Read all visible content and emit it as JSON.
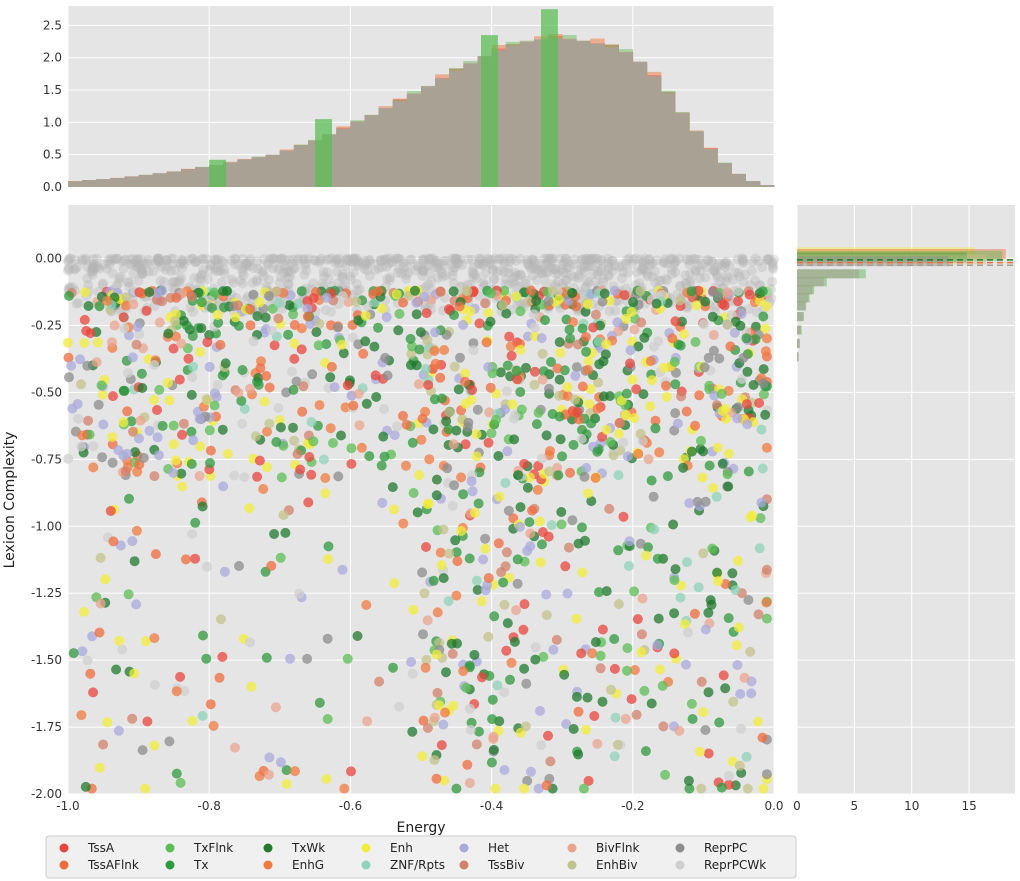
{
  "chart_data": [
    {
      "id": "top_hist",
      "type": "histogram",
      "ylim": [
        0,
        2.8
      ],
      "xlim": [
        -1.0,
        0.0
      ],
      "yticks": [
        "0.0",
        "0.5",
        "1.0",
        "1.5",
        "2.0",
        "2.5"
      ],
      "density_profile": [
        [
          -1.0,
          0.08
        ],
        [
          -0.95,
          0.12
        ],
        [
          -0.9,
          0.17
        ],
        [
          -0.85,
          0.24
        ],
        [
          -0.8,
          0.32
        ],
        [
          -0.75,
          0.42
        ],
        [
          -0.7,
          0.52
        ],
        [
          -0.65,
          0.72
        ],
        [
          -0.6,
          0.95
        ],
        [
          -0.55,
          1.22
        ],
        [
          -0.5,
          1.5
        ],
        [
          -0.45,
          1.8
        ],
        [
          -0.4,
          2.08
        ],
        [
          -0.35,
          2.25
        ],
        [
          -0.32,
          2.3
        ],
        [
          -0.28,
          2.28
        ],
        [
          -0.24,
          2.2
        ],
        [
          -0.2,
          2.05
        ],
        [
          -0.16,
          1.6
        ],
        [
          -0.12,
          1.0
        ],
        [
          -0.08,
          0.45
        ],
        [
          -0.04,
          0.12
        ],
        [
          0.0,
          0.0
        ]
      ],
      "green_spikes": [
        [
          -0.64,
          1.05
        ],
        [
          -0.405,
          2.35
        ],
        [
          -0.32,
          2.75
        ],
        [
          -0.79,
          0.42
        ]
      ]
    },
    {
      "id": "scatter",
      "type": "scatter",
      "xlabel": "Energy",
      "ylabel": "Lexicon Complexity",
      "xlim": [
        -1.0,
        0.0
      ],
      "ylim": [
        -2.0,
        0.2
      ],
      "xticks": [
        "-1.0",
        "-0.8",
        "-0.6",
        "-0.4",
        "-0.2",
        "0.0"
      ],
      "yticks": [
        "0.00",
        "-0.25",
        "-0.50",
        "-0.75",
        "-1.00",
        "-1.25",
        "-1.50",
        "-1.75",
        "-2.00"
      ],
      "point_count": 1600,
      "seed": 7
    },
    {
      "id": "right_hist",
      "type": "histogram",
      "orientation": "horizontal",
      "xlim": [
        0,
        19
      ],
      "xticks": [
        "0",
        "5",
        "10",
        "15"
      ],
      "ylim": [
        -2.0,
        0.2
      ]
    }
  ],
  "legend": {
    "items": [
      {
        "label": "TssA",
        "color": "#e8453c"
      },
      {
        "label": "TssAFlnk",
        "color": "#ef6c3d"
      },
      {
        "label": "TxFlnk",
        "color": "#5cbd55"
      },
      {
        "label": "Tx",
        "color": "#2f9a3e"
      },
      {
        "label": "TxWk",
        "color": "#1f7a2e"
      },
      {
        "label": "EnhG",
        "color": "#f07a40"
      },
      {
        "label": "Enh",
        "color": "#f2ec3a"
      },
      {
        "label": "ZNF/Rpts",
        "color": "#8fd3b8"
      },
      {
        "label": "Het",
        "color": "#a9a9dc"
      },
      {
        "label": "TssBiv",
        "color": "#d3806a"
      },
      {
        "label": "BivFlnk",
        "color": "#e9a48e"
      },
      {
        "label": "EnhBiv",
        "color": "#c3c28a"
      },
      {
        "label": "ReprPC",
        "color": "#8c8c8c"
      },
      {
        "label": "ReprPCWk",
        "color": "#cfcfcf"
      }
    ]
  }
}
